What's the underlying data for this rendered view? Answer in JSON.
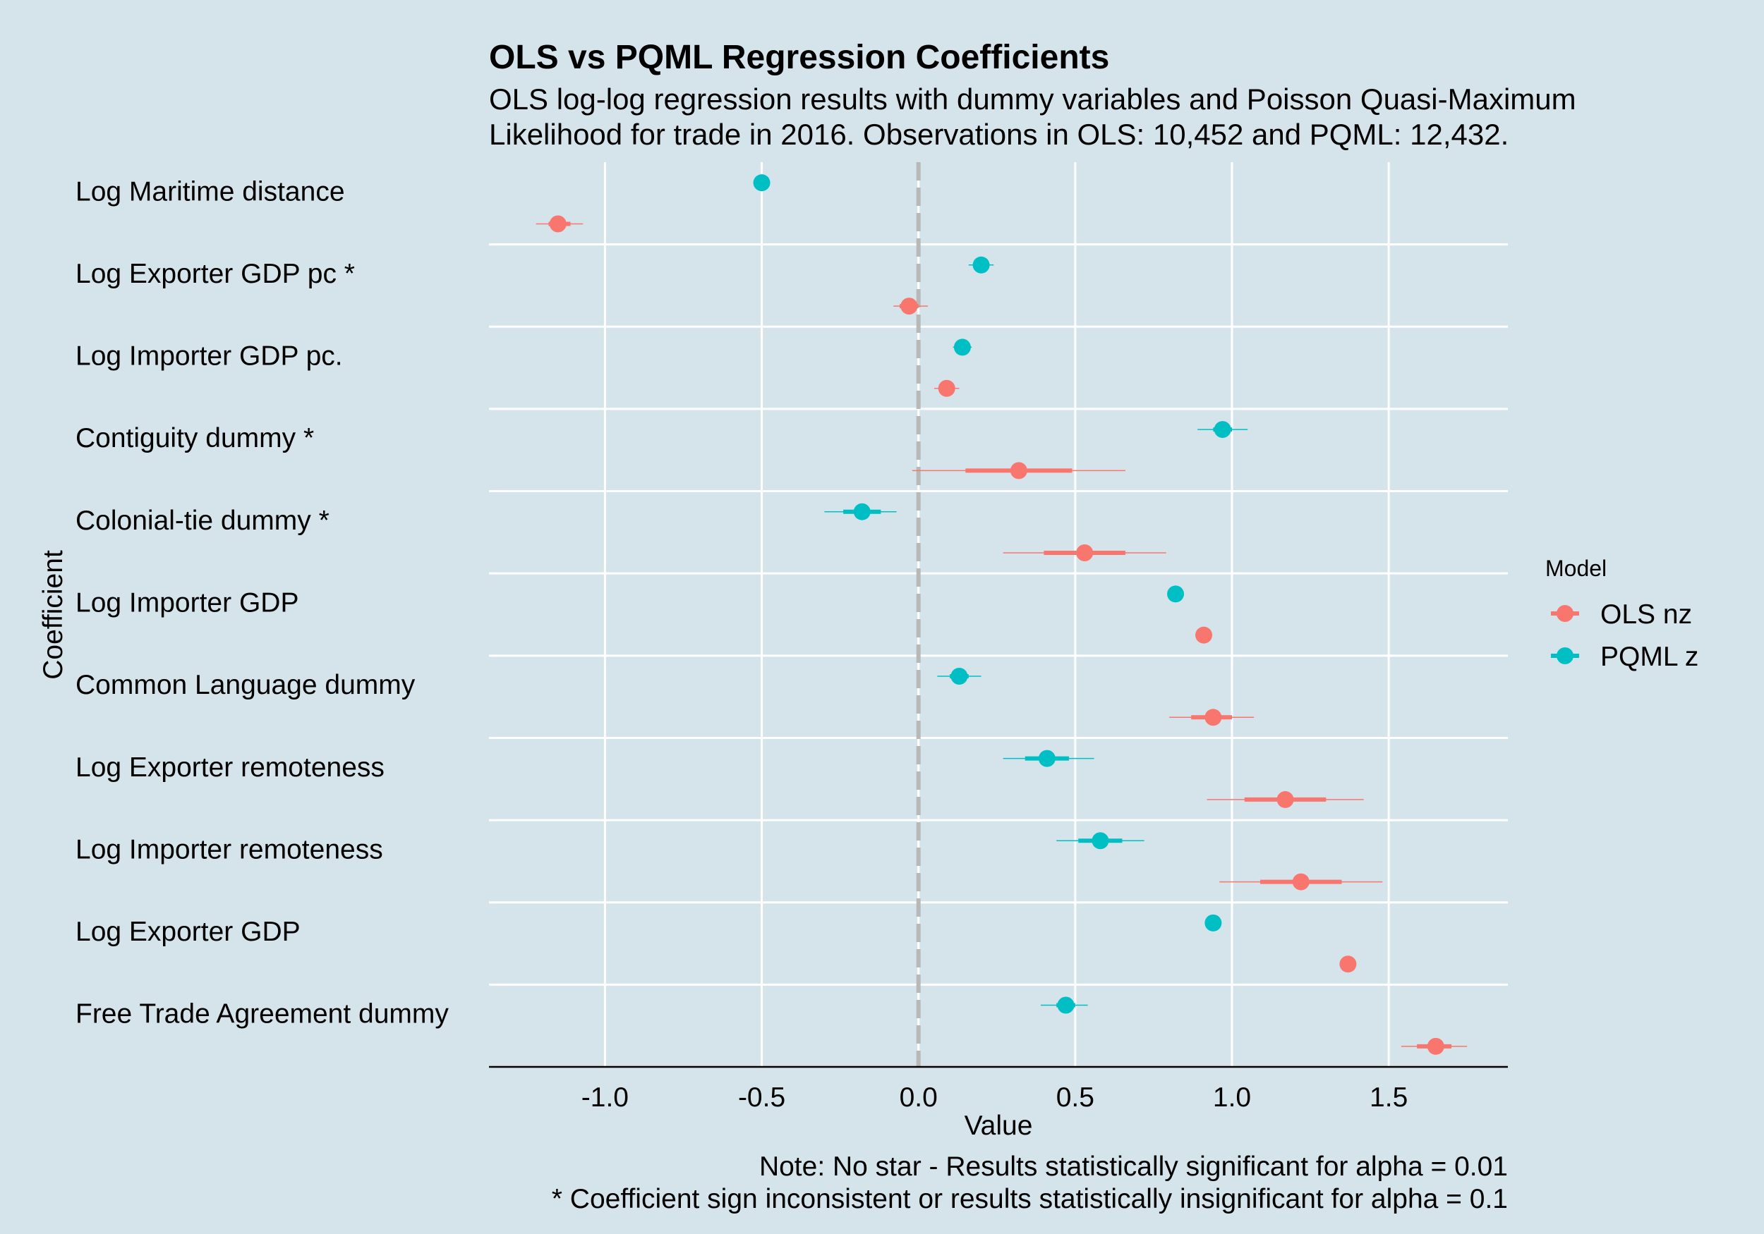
{
  "chart_data": {
    "type": "dot-and-whisker",
    "title": "OLS vs PQML Regression Coefficients",
    "subtitle_lines": [
      "OLS log-log regression results with dummy variables and Poisson Quasi-Maximum",
      "Likelihood for trade in 2016. Observations in OLS: 10,452 and PQML: 12,432."
    ],
    "xlabel": "Value",
    "ylabel": "Coefficient",
    "xlim": [
      -1.37,
      1.88
    ],
    "xticks": [
      -1.0,
      -0.5,
      0.0,
      0.5,
      1.0,
      1.5
    ],
    "xtick_labels": [
      "-1.0",
      "-0.5",
      "0.0",
      "0.5",
      "1.0",
      "1.5"
    ],
    "reference_line": 0,
    "legend": {
      "title": "Model",
      "position": "right",
      "entries": [
        {
          "name": "OLS nz",
          "color": "#f8766d"
        },
        {
          "name": "PQML z",
          "color": "#00bfc4"
        }
      ]
    },
    "categories": [
      "Log Maritime distance",
      "Log Exporter GDP pc *",
      "Log Importer GDP pc.",
      "Contiguity dummy *",
      "Colonial-tie dummy *",
      "Log Importer GDP",
      "Common Language dummy",
      "Log Exporter remoteness",
      "Log Importer remoteness",
      "Log Exporter GDP",
      "Free Trade Agreement dummy"
    ],
    "series": [
      {
        "name": "PQML z",
        "color": "#00bfc4",
        "values": [
          -0.5,
          0.2,
          0.14,
          0.97,
          -0.18,
          0.82,
          0.13,
          0.41,
          0.58,
          0.94,
          0.47
        ],
        "ci_inner": [
          [
            -0.51,
            -0.49
          ],
          [
            0.18,
            0.22
          ],
          [
            0.12,
            0.16
          ],
          [
            0.94,
            1.0
          ],
          [
            -0.24,
            -0.12
          ],
          [
            0.81,
            0.83
          ],
          [
            0.1,
            0.16
          ],
          [
            0.34,
            0.48
          ],
          [
            0.51,
            0.65
          ],
          [
            0.93,
            0.95
          ],
          [
            0.44,
            0.5
          ]
        ],
        "ci_outer": [
          [
            -0.52,
            -0.48
          ],
          [
            0.16,
            0.24
          ],
          [
            0.11,
            0.17
          ],
          [
            0.89,
            1.05
          ],
          [
            -0.3,
            -0.07
          ],
          [
            0.8,
            0.84
          ],
          [
            0.06,
            0.2
          ],
          [
            0.27,
            0.56
          ],
          [
            0.44,
            0.72
          ],
          [
            0.92,
            0.96
          ],
          [
            0.39,
            0.54
          ]
        ]
      },
      {
        "name": "OLS nz",
        "color": "#f8766d",
        "values": [
          -1.15,
          -0.03,
          0.09,
          0.32,
          0.53,
          0.91,
          0.94,
          1.17,
          1.22,
          1.37,
          1.65
        ],
        "ci_inner": [
          [
            -1.18,
            -1.11
          ],
          [
            -0.06,
            0.0
          ],
          [
            0.07,
            0.11
          ],
          [
            0.15,
            0.49
          ],
          [
            0.4,
            0.66
          ],
          [
            0.9,
            0.92
          ],
          [
            0.87,
            1.0
          ],
          [
            1.04,
            1.3
          ],
          [
            1.09,
            1.35
          ],
          [
            1.36,
            1.38
          ],
          [
            1.59,
            1.7
          ]
        ],
        "ci_outer": [
          [
            -1.22,
            -1.07
          ],
          [
            -0.08,
            0.03
          ],
          [
            0.05,
            0.13
          ],
          [
            -0.02,
            0.66
          ],
          [
            0.27,
            0.79
          ],
          [
            0.89,
            0.93
          ],
          [
            0.8,
            1.07
          ],
          [
            0.92,
            1.42
          ],
          [
            0.96,
            1.48
          ],
          [
            1.35,
            1.39
          ],
          [
            1.54,
            1.75
          ]
        ]
      }
    ],
    "caption_lines": [
      "Note: No star - Results statistically significant for alpha = 0.01",
      "*  Coefficient sign inconsistent or results statistically insignificant for alpha = 0.1"
    ]
  }
}
